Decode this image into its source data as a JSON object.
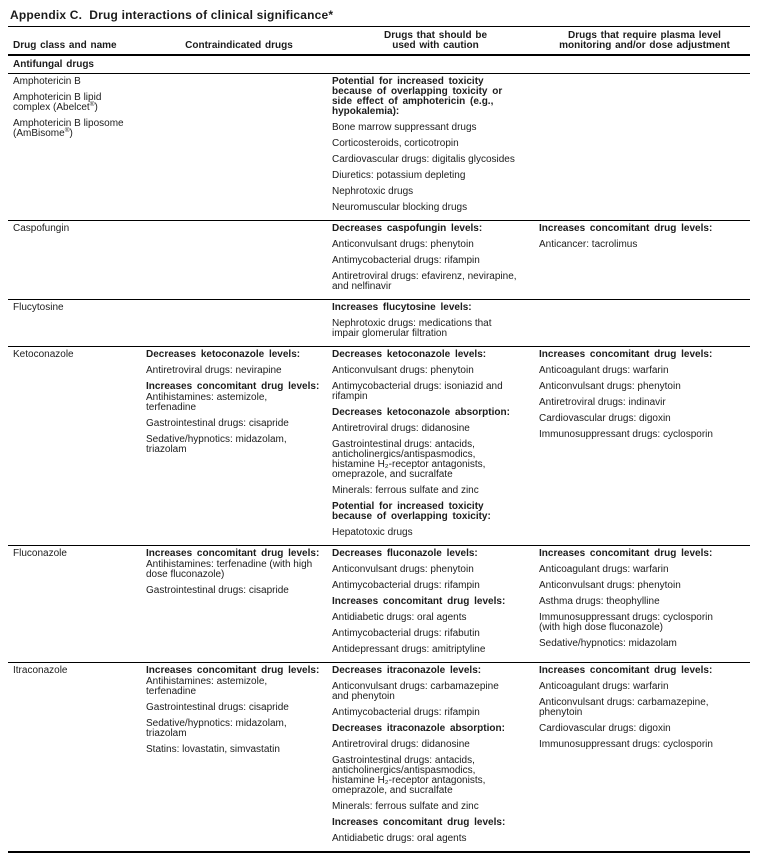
{
  "page": {
    "title": "Appendix C.  Drug interactions of clinical significance*"
  },
  "table": {
    "columns": [
      "Drug class and name",
      "Contraindicated drugs",
      "Drugs that should be\nused with caution",
      "Drugs that require plasma level\nmonitoring and/or dose adjustment"
    ],
    "section_header": "Antifungal drugs",
    "rows": [
      {
        "drug": [
          {
            "t": "Amphotericin B"
          },
          {
            "t": "Amphotericin B lipid\ncomplex (Abelcet®)"
          },
          {
            "t": "Amphotericin B liposome\n(AmBisome®)"
          }
        ],
        "contraindicated": [],
        "caution": [
          {
            "b": true,
            "t": "Potential for increased toxicity\nbecause of overlapping toxicity or\nside effect of amphotericin (e.g.,\nhypokalemia):"
          },
          {
            "t": "Bone marrow suppressant drugs"
          },
          {
            "t": "Corticosteroids, corticotropin"
          },
          {
            "t": "Cardiovascular drugs: digitalis glycosides"
          },
          {
            "t": "Diuretics: potassium depleting"
          },
          {
            "t": "Nephrotoxic drugs"
          },
          {
            "t": "Neuromuscular blocking drugs"
          }
        ],
        "monitoring": []
      },
      {
        "drug": [
          {
            "t": "Caspofungin"
          }
        ],
        "contraindicated": [],
        "caution": [
          {
            "b": true,
            "t": "Decreases caspofungin levels:"
          },
          {
            "t": "Anticonvulsant drugs: phenytoin"
          },
          {
            "t": "Antimycobacterial drugs: rifampin"
          },
          {
            "t": "Antiretroviral drugs: efavirenz, nevirapine,\nand nelfinavir"
          }
        ],
        "monitoring": [
          {
            "b": true,
            "t": "Increases concomitant drug levels:"
          },
          {
            "t": "Anticancer: tacrolimus"
          }
        ]
      },
      {
        "drug": [
          {
            "t": "Flucytosine"
          }
        ],
        "contraindicated": [],
        "caution": [
          {
            "b": true,
            "t": "Increases flucytosine levels:"
          },
          {
            "t": "Nephrotoxic drugs: medications that\nimpair glomerular filtration"
          }
        ],
        "monitoring": []
      },
      {
        "drug": [
          {
            "t": "Ketoconazole"
          }
        ],
        "contraindicated": [
          {
            "b": true,
            "t": "Decreases ketoconazole levels:"
          },
          {
            "t": "Antiretroviral drugs: nevirapine"
          },
          {
            "b": true,
            "t": "Increases concomitant drug levels:"
          },
          {
            "tight": true,
            "t": "Antihistamines: astemizole,\nterfenadine"
          },
          {
            "t": "Gastrointestinal drugs: cisapride"
          },
          {
            "t": "Sedative/hypnotics: midazolam,\ntriazolam"
          }
        ],
        "caution": [
          {
            "b": true,
            "t": "Decreases ketoconazole levels:"
          },
          {
            "t": "Anticonvulsant drugs: phenytoin"
          },
          {
            "t": "Antimycobacterial drugs: isoniazid and\nrifampin"
          },
          {
            "b": true,
            "t": "Decreases ketoconazole absorption:"
          },
          {
            "t": "Antiretroviral drugs: didanosine"
          },
          {
            "t": "Gastrointestinal drugs: antacids,\nanticholinergics/antispasmodics,\nhistamine H₂-receptor antagonists,\nomeprazole, and sucralfate"
          },
          {
            "t": "Minerals: ferrous sulfate and zinc"
          },
          {
            "b": true,
            "t": "Potential for increased toxicity\nbecause of overlapping toxicity:"
          },
          {
            "t": "Hepatotoxic drugs"
          }
        ],
        "monitoring": [
          {
            "b": true,
            "t": "Increases concomitant drug levels:"
          },
          {
            "t": "Anticoagulant drugs: warfarin"
          },
          {
            "t": "Anticonvulsant drugs: phenytoin"
          },
          {
            "t": "Antiretroviral drugs: indinavir"
          },
          {
            "t": "Cardiovascular drugs: digoxin"
          },
          {
            "t": "Immunosuppressant drugs: cyclosporin"
          }
        ]
      },
      {
        "drug": [
          {
            "t": "Fluconazole"
          }
        ],
        "contraindicated": [
          {
            "b": true,
            "t": "Increases concomitant drug levels:"
          },
          {
            "tight": true,
            "t": "Antihistamines: terfenadine (with high\ndose fluconazole)"
          },
          {
            "t": "Gastrointestinal drugs: cisapride"
          }
        ],
        "caution": [
          {
            "b": true,
            "t": "Decreases fluconazole levels:"
          },
          {
            "t": "Anticonvulsant drugs: phenytoin"
          },
          {
            "t": "Antimycobacterial drugs: rifampin"
          },
          {
            "b": true,
            "t": "Increases concomitant drug levels:"
          },
          {
            "t": "Antidiabetic drugs: oral agents"
          },
          {
            "t": "Antimycobacterial drugs: rifabutin"
          },
          {
            "t": "Antidepressant drugs: amitriptyline"
          }
        ],
        "monitoring": [
          {
            "b": true,
            "t": "Increases concomitant drug levels:"
          },
          {
            "t": "Anticoagulant drugs: warfarin"
          },
          {
            "t": "Anticonvulsant drugs: phenytoin"
          },
          {
            "t": "Asthma drugs: theophylline"
          },
          {
            "t": "Immunosuppressant drugs: cyclosporin\n(with high dose fluconazole)"
          },
          {
            "t": "Sedative/hypnotics: midazolam"
          }
        ]
      },
      {
        "drug": [
          {
            "t": "Itraconazole"
          }
        ],
        "contraindicated": [
          {
            "b": true,
            "t": "Increases concomitant drug levels:"
          },
          {
            "tight": true,
            "t": "Antihistamines: astemizole,\nterfenadine"
          },
          {
            "t": "Gastrointestinal drugs: cisapride"
          },
          {
            "t": "Sedative/hypnotics: midazolam,\ntriazolam"
          },
          {
            "t": "Statins: lovastatin, simvastatin"
          }
        ],
        "caution": [
          {
            "b": true,
            "t": "Decreases itraconazole levels:"
          },
          {
            "t": "Anticonvulsant drugs: carbamazepine\nand phenytoin"
          },
          {
            "t": "Antimycobacterial drugs: rifampin"
          },
          {
            "b": true,
            "t": "Decreases itraconazole absorption:"
          },
          {
            "t": "Antiretroviral drugs: didanosine"
          },
          {
            "t": "Gastrointestinal drugs: antacids,\nanticholinergics/antispasmodics,\nhistamine H₂-receptor antagonists,\nomeprazole, and sucralfate"
          },
          {
            "t": "Minerals: ferrous sulfate and zinc"
          },
          {
            "b": true,
            "t": "Increases concomitant drug levels:"
          },
          {
            "t": "Antidiabetic drugs: oral agents"
          }
        ],
        "monitoring": [
          {
            "b": true,
            "t": "Increases concomitant drug levels:"
          },
          {
            "t": "Anticoagulant drugs: warfarin"
          },
          {
            "t": "Anticonvulsant drugs: carbamazepine,\nphenytoin"
          },
          {
            "t": "Cardiovascular drugs: digoxin"
          },
          {
            "t": "Immunosuppressant drugs: cyclosporin"
          }
        ]
      }
    ]
  }
}
